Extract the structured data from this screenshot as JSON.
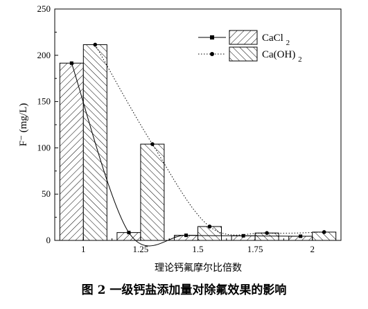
{
  "chart_data": {
    "type": "bar",
    "categories": [
      "1",
      "1.25",
      "1.5",
      "1.75",
      "2"
    ],
    "series": [
      {
        "name": "CaCl2",
        "values": [
          191.5,
          8.5,
          5.5,
          5,
          4.5
        ]
      },
      {
        "name": "Ca(OH)2",
        "values": [
          211.5,
          104,
          15,
          8,
          9
        ]
      }
    ],
    "ylabel": "F⁻ (mg/L)",
    "xlabel": "理论钙氟摩尔比倍数",
    "ylim": [
      0,
      250
    ],
    "yticks": [
      0,
      50,
      100,
      150,
      200,
      250
    ],
    "legend_position": "top-right",
    "grid": false,
    "colors": {
      "axis": "#000000",
      "bar_fill": "#ffffff"
    }
  },
  "caption": "图 2 一级钙盐添加量对除氟效果的影响"
}
